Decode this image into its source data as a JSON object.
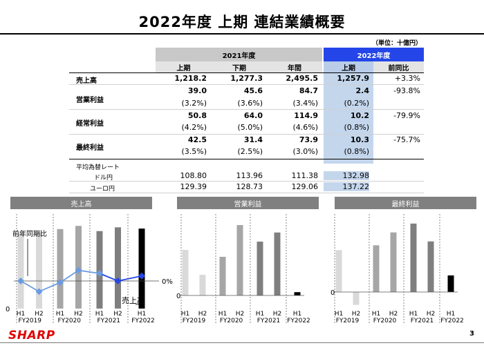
{
  "title": "2022年度 上期 連結業績概要",
  "unit": "（単位：十億円）",
  "table": {
    "header_2021": "2021年度",
    "header_2022": "2022年度",
    "subheaders": [
      "上期",
      "下期",
      "年間",
      "上期",
      "前同比"
    ],
    "rows": {
      "sales": {
        "label": "売上高",
        "values": [
          "1,218.2",
          "1,277.3",
          "2,495.5",
          "1,257.9",
          "+3.3%"
        ]
      },
      "operating": {
        "label": "営業利益",
        "values": [
          "39.0",
          "45.6",
          "84.7",
          "2.4",
          "-93.8%"
        ],
        "ratios": [
          "(3.2%)",
          "(3.6%)",
          "(3.4%)",
          "(0.2%)"
        ]
      },
      "ordinary": {
        "label": "経常利益",
        "values": [
          "50.8",
          "64.0",
          "114.9",
          "10.2",
          "-79.9%"
        ],
        "ratios": [
          "(4.2%)",
          "(5.0%)",
          "(4.6%)",
          "(0.8%)"
        ]
      },
      "net": {
        "label": "最終利益",
        "values": [
          "42.5",
          "31.4",
          "73.9",
          "10.3",
          "-75.7%"
        ],
        "ratios": [
          "(3.5%)",
          "(2.5%)",
          "(3.0%)",
          "(0.8%)"
        ]
      }
    },
    "fx_label": "平均為替レート",
    "fx": {
      "usd": {
        "label": "ドル円",
        "values": [
          "108.80",
          "113.96",
          "111.38",
          "132.98"
        ]
      },
      "eur": {
        "label": "ユーロ円",
        "values": [
          "129.39",
          "128.73",
          "129.06",
          "137.22"
        ]
      }
    }
  },
  "chart_data": [
    {
      "type": "bar",
      "title": "売上高",
      "categories": [
        "H1 FY2019",
        "H2 FY2019",
        "H1 FY2020",
        "H2 FY2020",
        "H1 FY2021",
        "H2 FY2021",
        "H1 FY2022"
      ],
      "tick_h": [
        "H1",
        "H2",
        "H1",
        "H2",
        "H1",
        "H2",
        "H1"
      ],
      "tick_fy": [
        "FY2019",
        "FY2020",
        "FY2021",
        "FY2022"
      ],
      "values": [
        1190,
        1190,
        1250,
        1300,
        1218.2,
        1277.3,
        1257.9
      ],
      "bar_label": "売上高",
      "ylim": [
        0,
        1400
      ],
      "y_zero_label": "0",
      "line_series": {
        "name": "前年同期比",
        "values": [
          0,
          -7,
          -1,
          7,
          5,
          0,
          3.3
        ],
        "zero_label": "0%",
        "ylim": [
          -30,
          30
        ]
      }
    },
    {
      "type": "bar",
      "title": "営業利益",
      "categories": [
        "H1 FY2019",
        "H2 FY2019",
        "H1 FY2020",
        "H2 FY2020",
        "H1 FY2021",
        "H2 FY2021",
        "H1 FY2022"
      ],
      "tick_h": [
        "H1",
        "H2",
        "H1",
        "H2",
        "H1",
        "H2",
        "H1"
      ],
      "tick_fy": [
        "FY2019",
        "FY2020",
        "FY2021",
        "FY2022"
      ],
      "values": [
        33,
        15,
        28,
        51,
        39.0,
        45.6,
        2.4
      ],
      "ylim": [
        0,
        55
      ],
      "y_zero_label": "0"
    },
    {
      "type": "bar",
      "title": "最終利益",
      "categories": [
        "H1 FY2019",
        "H2 FY2019",
        "H1 FY2020",
        "H2 FY2020",
        "H1 FY2021",
        "H2 FY2021",
        "H1 FY2022"
      ],
      "tick_h": [
        "H1",
        "H2",
        "H1",
        "H2",
        "H1",
        "H2",
        "H1"
      ],
      "tick_fy": [
        "FY2019",
        "FY2020",
        "FY2021",
        "FY2022"
      ],
      "values": [
        26,
        -8,
        29,
        37,
        42.5,
        31.4,
        10.3
      ],
      "ylim": [
        -12,
        45
      ],
      "y_zero_label": "0"
    }
  ],
  "footer": {
    "logo": "SHARP",
    "page": "3"
  }
}
